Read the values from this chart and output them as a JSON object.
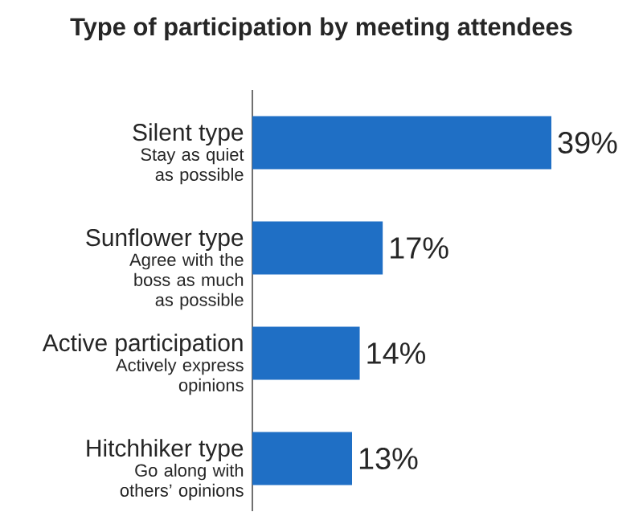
{
  "chart_data": {
    "type": "bar",
    "orientation": "horizontal",
    "title": "Type of participation by meeting attendees",
    "categories": [
      "Silent type",
      "Sunflower type",
      "Active participation",
      "Hitchhiker type"
    ],
    "annotations": [
      "Stay as quiet as possible",
      "Agree with the boss as much as possible",
      "Actively express opinions",
      "Go along with others’ opinions"
    ],
    "values": [
      39,
      17,
      14,
      13
    ],
    "value_labels": [
      "39%",
      "17%",
      "14%",
      "13%"
    ],
    "color": "#1f6fc5"
  }
}
